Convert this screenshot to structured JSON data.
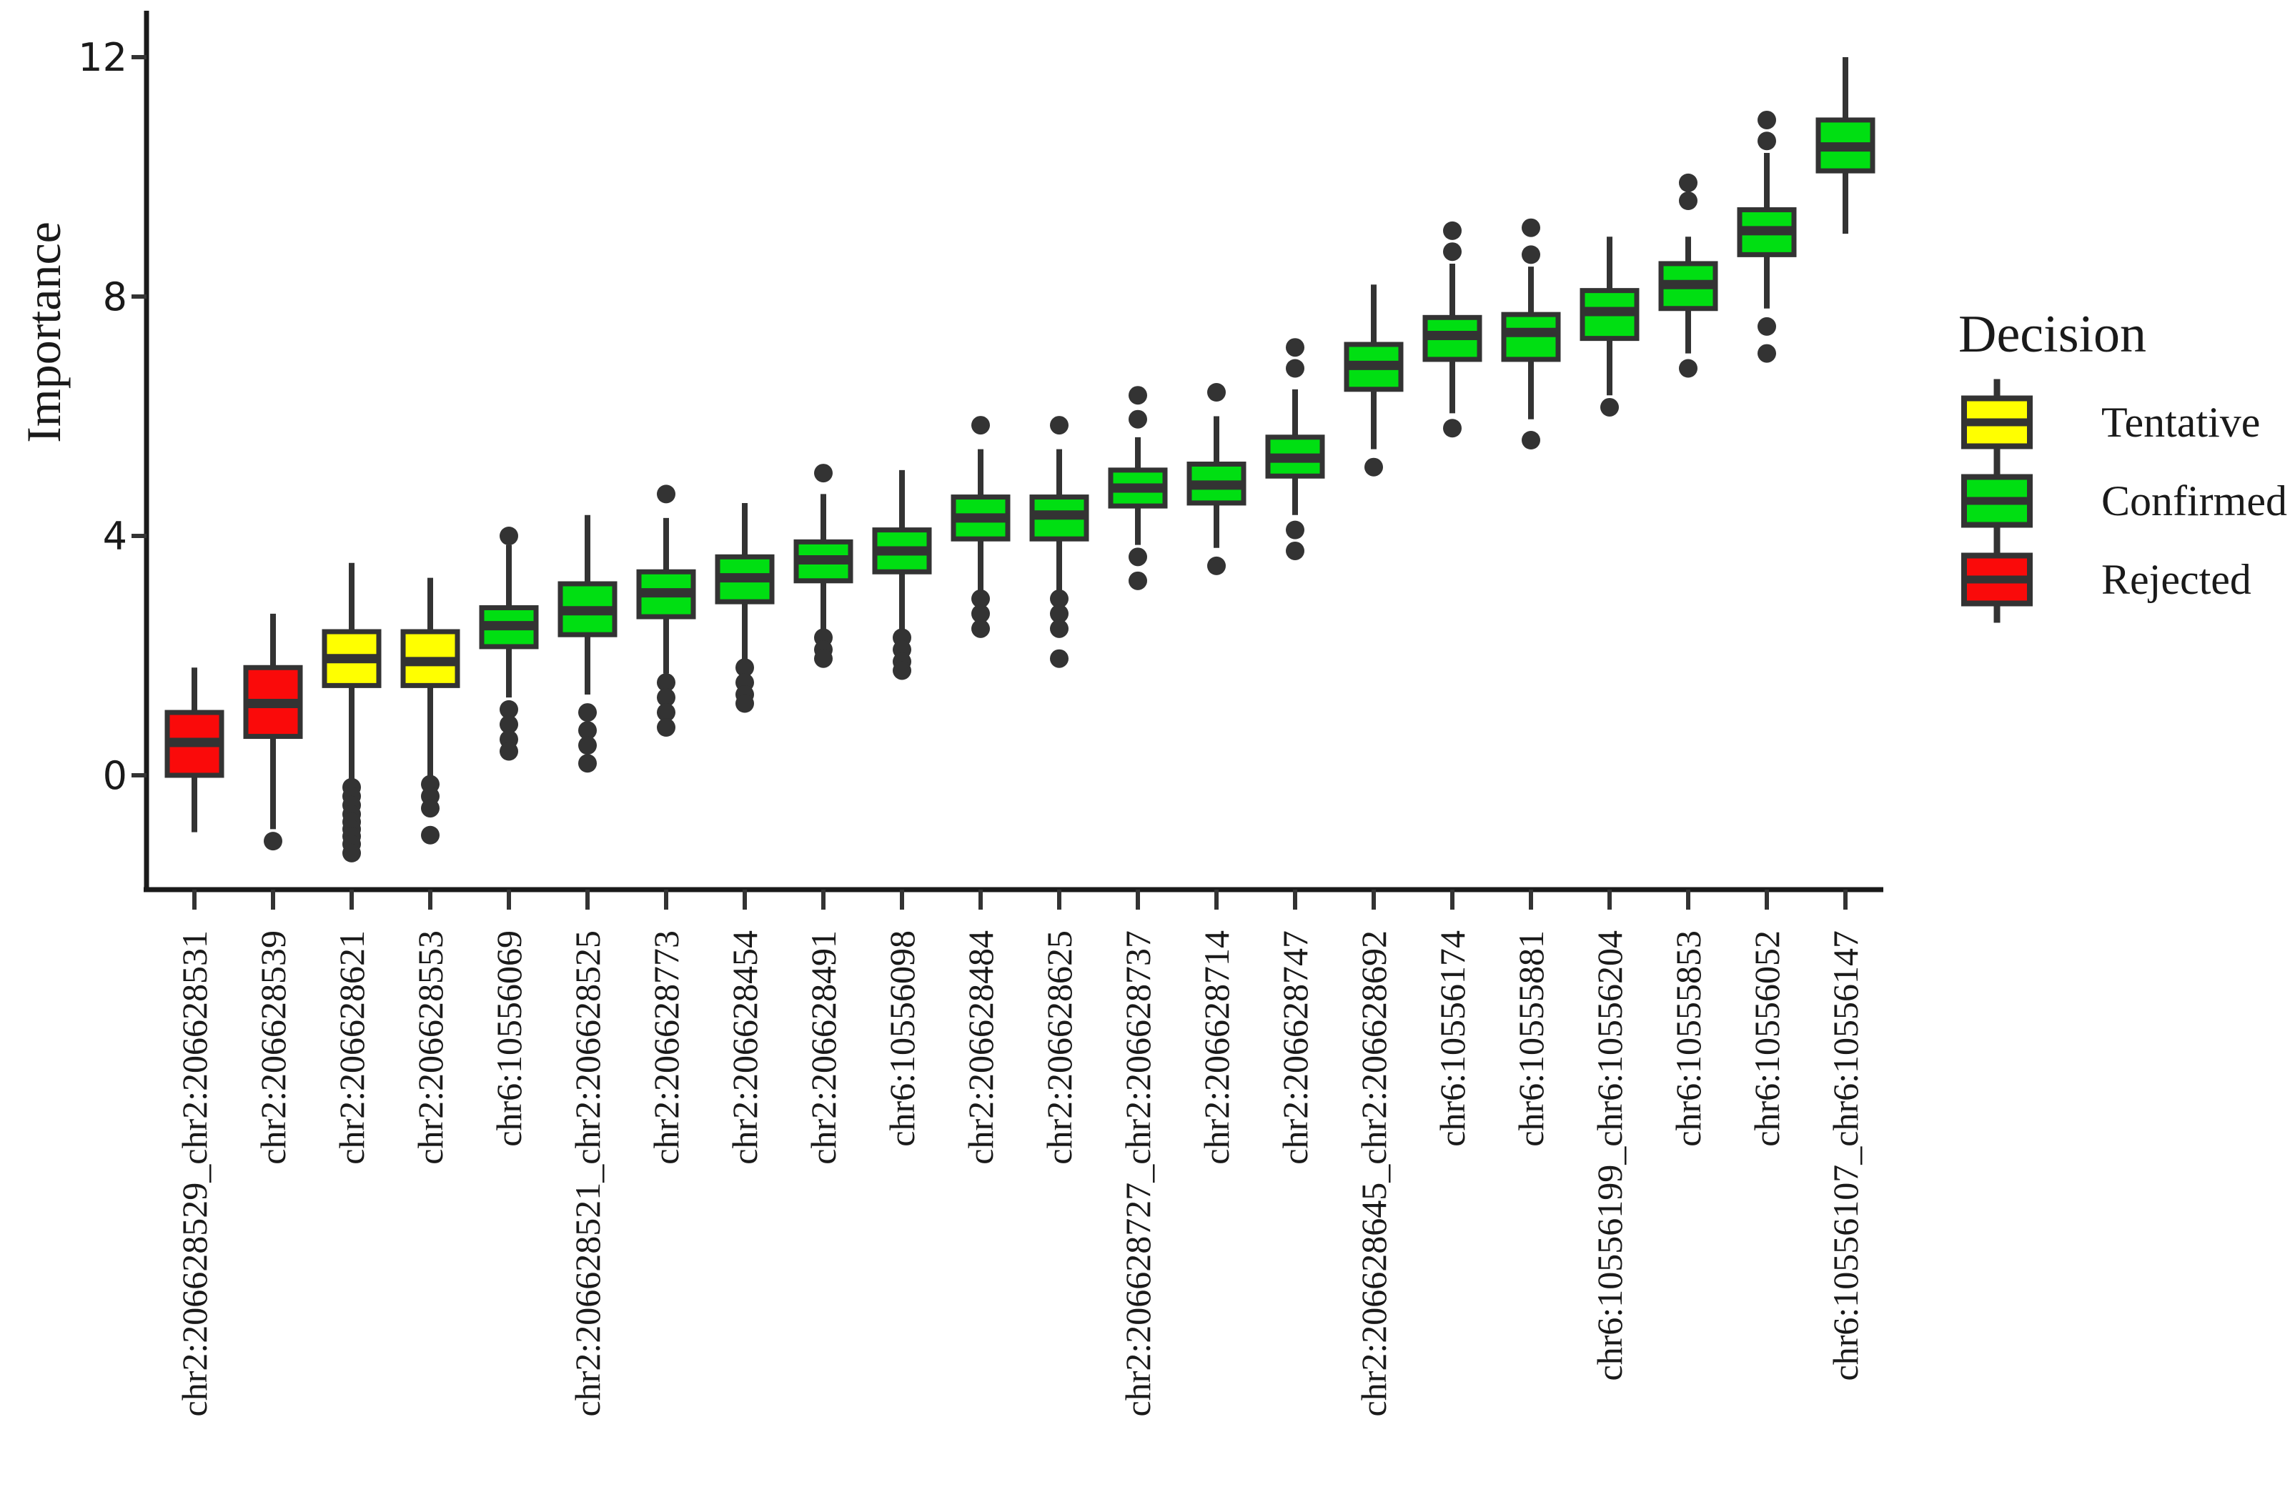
{
  "chart_data": {
    "type": "boxplot",
    "title": "",
    "xlabel": "",
    "ylabel": "Importance",
    "ylim": [
      -2.0,
      12.9
    ],
    "yticks": [
      0,
      4,
      8,
      12
    ],
    "grid": false,
    "legend": {
      "title": "Decision",
      "position": "right",
      "entries": [
        {
          "label": "Tentative",
          "color": "#FFFF00"
        },
        {
          "label": "Confirmed",
          "color": "#00DF12"
        },
        {
          "label": "Rejected",
          "color": "#FA0A0A"
        }
      ]
    },
    "colors": {
      "box_stroke": "#333333",
      "median": "#333333",
      "outlier": "#333333",
      "axis": "#1A1A1A",
      "tick_label": "#4D4D4D",
      "background": "#FFFFFF"
    },
    "boxes": [
      {
        "label": "chr2:206628529_chr2:206628531",
        "decision": "Rejected",
        "whisker_low": -0.95,
        "q1": 0.0,
        "median": 0.55,
        "q3": 1.05,
        "whisker_high": 1.8,
        "outliers": []
      },
      {
        "label": "chr2:206628539",
        "decision": "Rejected",
        "whisker_low": -0.9,
        "q1": 0.65,
        "median": 1.2,
        "q3": 1.8,
        "whisker_high": 2.7,
        "outliers": [
          -1.1
        ]
      },
      {
        "label": "chr2:206628621",
        "decision": "Tentative",
        "whisker_low": -0.1,
        "q1": 1.5,
        "median": 1.95,
        "q3": 2.4,
        "whisker_high": 3.55,
        "outliers": [
          -0.2,
          -0.35,
          -0.5,
          -0.65,
          -0.78,
          -0.9,
          -1.02,
          -1.15,
          -1.3
        ]
      },
      {
        "label": "chr2:206628553",
        "decision": "Tentative",
        "whisker_low": -0.1,
        "q1": 1.5,
        "median": 1.9,
        "q3": 2.4,
        "whisker_high": 3.3,
        "outliers": [
          -0.15,
          -0.35,
          -0.55,
          -1.0
        ]
      },
      {
        "label": "chr6:10556069",
        "decision": "Confirmed",
        "whisker_low": 1.3,
        "q1": 2.15,
        "median": 2.5,
        "q3": 2.8,
        "whisker_high": 3.85,
        "outliers": [
          4.0,
          1.1,
          0.85,
          0.6,
          0.4
        ]
      },
      {
        "label": "chr2:206628521_chr2:206628525",
        "decision": "Confirmed",
        "whisker_low": 1.35,
        "q1": 2.35,
        "median": 2.75,
        "q3": 3.2,
        "whisker_high": 4.35,
        "outliers": [
          1.05,
          0.75,
          0.5,
          0.2
        ]
      },
      {
        "label": "chr2:206628773",
        "decision": "Confirmed",
        "whisker_low": 1.7,
        "q1": 2.65,
        "median": 3.05,
        "q3": 3.4,
        "whisker_high": 4.3,
        "outliers": [
          4.7,
          1.55,
          1.3,
          1.05,
          0.8
        ]
      },
      {
        "label": "chr2:206628454",
        "decision": "Confirmed",
        "whisker_low": 1.9,
        "q1": 2.9,
        "median": 3.3,
        "q3": 3.65,
        "whisker_high": 4.55,
        "outliers": [
          1.8,
          1.55,
          1.35,
          1.2
        ]
      },
      {
        "label": "chr2:206628491",
        "decision": "Confirmed",
        "whisker_low": 2.4,
        "q1": 3.25,
        "median": 3.6,
        "q3": 3.9,
        "whisker_high": 4.7,
        "outliers": [
          5.05,
          2.3,
          2.1,
          1.95
        ]
      },
      {
        "label": "chr6:10556098",
        "decision": "Confirmed",
        "whisker_low": 2.4,
        "q1": 3.4,
        "median": 3.75,
        "q3": 4.1,
        "whisker_high": 5.1,
        "outliers": [
          2.3,
          2.1,
          1.9,
          1.75
        ]
      },
      {
        "label": "chr2:206628484",
        "decision": "Confirmed",
        "whisker_low": 3.05,
        "q1": 3.95,
        "median": 4.3,
        "q3": 4.65,
        "whisker_high": 5.45,
        "outliers": [
          5.85,
          2.95,
          2.7,
          2.45
        ]
      },
      {
        "label": "chr2:206628625",
        "decision": "Confirmed",
        "whisker_low": 3.05,
        "q1": 3.95,
        "median": 4.35,
        "q3": 4.65,
        "whisker_high": 5.45,
        "outliers": [
          5.85,
          2.95,
          2.7,
          2.45,
          1.95
        ]
      },
      {
        "label": "chr2:206628727_chr2:206628737",
        "decision": "Confirmed",
        "whisker_low": 3.85,
        "q1": 4.5,
        "median": 4.8,
        "q3": 5.1,
        "whisker_high": 5.65,
        "outliers": [
          6.35,
          5.95,
          3.65,
          3.25
        ]
      },
      {
        "label": "chr2:206628714",
        "decision": "Confirmed",
        "whisker_low": 3.8,
        "q1": 4.55,
        "median": 4.85,
        "q3": 5.2,
        "whisker_high": 6.0,
        "outliers": [
          6.4,
          3.5
        ]
      },
      {
        "label": "chr2:206628747",
        "decision": "Confirmed",
        "whisker_low": 4.35,
        "q1": 5.0,
        "median": 5.3,
        "q3": 5.65,
        "whisker_high": 6.45,
        "outliers": [
          7.15,
          6.8,
          4.1,
          3.75
        ]
      },
      {
        "label": "chr2:206628645_chr2:206628692",
        "decision": "Confirmed",
        "whisker_low": 5.45,
        "q1": 6.45,
        "median": 6.85,
        "q3": 7.2,
        "whisker_high": 8.2,
        "outliers": [
          5.15
        ]
      },
      {
        "label": "chr6:10556174",
        "decision": "Confirmed",
        "whisker_low": 6.05,
        "q1": 6.95,
        "median": 7.35,
        "q3": 7.65,
        "whisker_high": 8.55,
        "outliers": [
          9.1,
          8.75,
          5.8
        ]
      },
      {
        "label": "chr6:10555881",
        "decision": "Confirmed",
        "whisker_low": 5.95,
        "q1": 6.95,
        "median": 7.4,
        "q3": 7.7,
        "whisker_high": 8.5,
        "outliers": [
          9.15,
          8.7,
          5.6
        ]
      },
      {
        "label": "chr6:10556199_chr6:10556204",
        "decision": "Confirmed",
        "whisker_low": 6.35,
        "q1": 7.3,
        "median": 7.75,
        "q3": 8.1,
        "whisker_high": 9.0,
        "outliers": [
          6.15
        ]
      },
      {
        "label": "chr6:10555853",
        "decision": "Confirmed",
        "whisker_low": 7.05,
        "q1": 7.8,
        "median": 8.2,
        "q3": 8.55,
        "whisker_high": 9.0,
        "outliers": [
          9.9,
          9.6,
          6.8
        ]
      },
      {
        "label": "chr6:10556052",
        "decision": "Confirmed",
        "whisker_low": 7.8,
        "q1": 8.7,
        "median": 9.1,
        "q3": 9.45,
        "whisker_high": 10.4,
        "outliers": [
          10.95,
          10.6,
          7.5,
          7.05
        ]
      },
      {
        "label": "chr6:10556107_chr6:10556147",
        "decision": "Confirmed",
        "whisker_low": 9.05,
        "q1": 10.1,
        "median": 10.5,
        "q3": 10.95,
        "whisker_high": 12.0,
        "outliers": []
      }
    ]
  }
}
